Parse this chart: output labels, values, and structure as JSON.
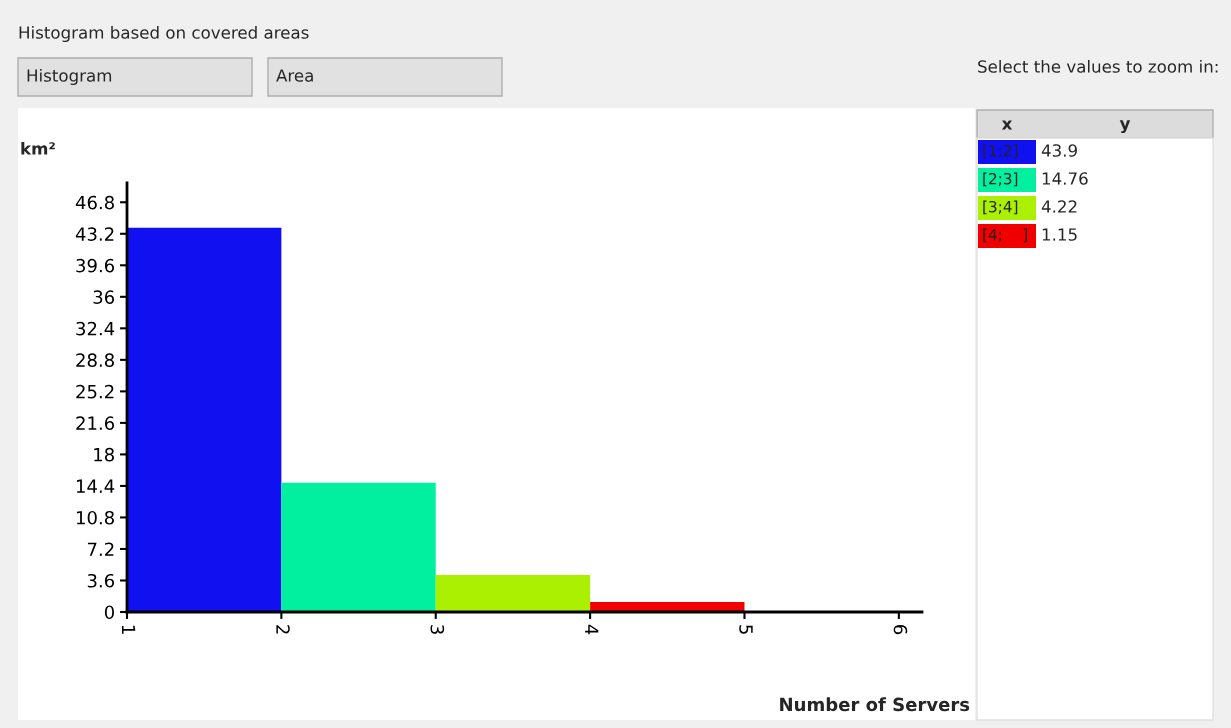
{
  "chart_data": {
    "type": "histogram",
    "title": "Histogram based on covered areas",
    "xlabel": "Number of Servers",
    "ylabel": "km²",
    "bins": [
      1,
      2,
      3,
      4,
      5
    ],
    "values": [
      43.9,
      14.76,
      4.22,
      1.15
    ],
    "colors": [
      "#1010f0",
      "#00f0a0",
      "#aaf000",
      "#f00000"
    ],
    "xlim": [
      1,
      6.15
    ],
    "xticks": [
      1,
      2,
      3,
      4,
      5,
      6
    ],
    "ylim": [
      0,
      49
    ],
    "yticks": [
      0,
      3.6,
      7.2,
      10.8,
      14.4,
      18,
      21.6,
      25.2,
      28.8,
      32.4,
      36,
      39.6,
      43.2,
      46.8
    ],
    "grid": false,
    "annotations": [
      "Histogram",
      "Area",
      "Select the values to zoom in:",
      "x",
      "y",
      "[1;2]",
      "43.9",
      "[2;3]",
      "14.76",
      "[3;4]",
      "4.22",
      "[4;    ]",
      "1.15"
    ]
  }
}
